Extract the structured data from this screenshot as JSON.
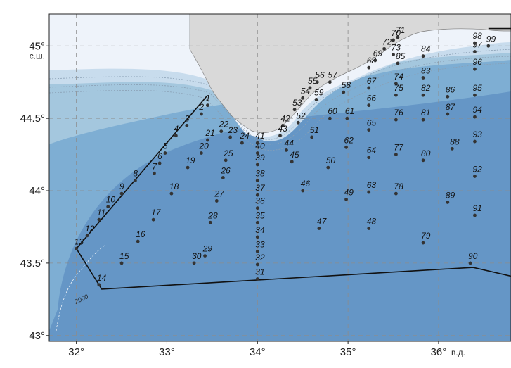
{
  "map": {
    "lon_range": [
      31.7,
      36.8
    ],
    "lat_range": [
      42.96,
      45.22
    ],
    "lat_ticks": [
      {
        "value": 45.0,
        "label": "45°",
        "unit": "с.ш."
      },
      {
        "value": 44.5,
        "label": "44.5°",
        "unit": ""
      },
      {
        "value": 44.0,
        "label": "44°",
        "unit": ""
      },
      {
        "value": 43.5,
        "label": "43.5°",
        "unit": ""
      },
      {
        "value": 43.0,
        "label": "43°",
        "unit": ""
      }
    ],
    "lon_ticks": [
      {
        "value": 32,
        "label": "32°",
        "unit": ""
      },
      {
        "value": 33,
        "label": "33°",
        "unit": ""
      },
      {
        "value": 34,
        "label": "34°",
        "unit": ""
      },
      {
        "value": 35,
        "label": "35°",
        "unit": ""
      },
      {
        "value": 36,
        "label": "36°",
        "unit": "в.д."
      }
    ],
    "isobath_label": "2000",
    "colors": {
      "land": "#d9d9d9",
      "depth_shallow": "#eef3fa",
      "depth_shelf": "#c8dced",
      "depth_slope": "#a4c7de",
      "depth_mid": "#7eaed3",
      "depth_deep": "#6596c6",
      "station_marker": "#333333",
      "track_line": "#111111"
    },
    "stations": [
      {
        "id": "1",
        "lon": 33.45,
        "lat": 44.59
      },
      {
        "id": "2",
        "lon": 33.38,
        "lat": 44.53
      },
      {
        "id": "3",
        "lon": 33.22,
        "lat": 44.45
      },
      {
        "id": "4",
        "lon": 33.1,
        "lat": 44.38
      },
      {
        "id": "5",
        "lon": 32.98,
        "lat": 44.26
      },
      {
        "id": "6",
        "lon": 32.92,
        "lat": 44.19
      },
      {
        "id": "7",
        "lon": 32.86,
        "lat": 44.12
      },
      {
        "id": "8",
        "lon": 32.65,
        "lat": 44.07
      },
      {
        "id": "9",
        "lon": 32.5,
        "lat": 43.98
      },
      {
        "id": "10",
        "lon": 32.35,
        "lat": 43.89
      },
      {
        "id": "11",
        "lon": 32.25,
        "lat": 43.8
      },
      {
        "id": "12",
        "lon": 32.12,
        "lat": 43.69
      },
      {
        "id": "13",
        "lon": 32.0,
        "lat": 43.6
      },
      {
        "id": "14",
        "lon": 32.25,
        "lat": 43.35
      },
      {
        "id": "15",
        "lon": 32.5,
        "lat": 43.5
      },
      {
        "id": "16",
        "lon": 32.68,
        "lat": 43.65
      },
      {
        "id": "17",
        "lon": 32.85,
        "lat": 43.8
      },
      {
        "id": "18",
        "lon": 33.05,
        "lat": 43.98
      },
      {
        "id": "19",
        "lon": 33.23,
        "lat": 44.16
      },
      {
        "id": "20",
        "lon": 33.38,
        "lat": 44.26
      },
      {
        "id": "21",
        "lon": 33.45,
        "lat": 44.35
      },
      {
        "id": "22",
        "lon": 33.6,
        "lat": 44.41
      },
      {
        "id": "23",
        "lon": 33.7,
        "lat": 44.37
      },
      {
        "id": "24",
        "lon": 33.83,
        "lat": 44.33
      },
      {
        "id": "25",
        "lon": 33.65,
        "lat": 44.21
      },
      {
        "id": "26",
        "lon": 33.62,
        "lat": 44.09
      },
      {
        "id": "27",
        "lon": 33.55,
        "lat": 43.93
      },
      {
        "id": "28",
        "lon": 33.48,
        "lat": 43.78
      },
      {
        "id": "29",
        "lon": 33.42,
        "lat": 43.55
      },
      {
        "id": "30",
        "lon": 33.3,
        "lat": 43.5
      },
      {
        "id": "31",
        "lon": 34.0,
        "lat": 43.39
      },
      {
        "id": "32",
        "lon": 34.0,
        "lat": 43.49
      },
      {
        "id": "33",
        "lon": 34.0,
        "lat": 43.58
      },
      {
        "id": "34",
        "lon": 34.0,
        "lat": 43.68
      },
      {
        "id": "35",
        "lon": 34.0,
        "lat": 43.78
      },
      {
        "id": "36",
        "lon": 34.0,
        "lat": 43.88
      },
      {
        "id": "37",
        "lon": 34.0,
        "lat": 43.97
      },
      {
        "id": "38",
        "lon": 34.0,
        "lat": 44.07
      },
      {
        "id": "39",
        "lon": 34.0,
        "lat": 44.18
      },
      {
        "id": "40",
        "lon": 34.0,
        "lat": 44.26
      },
      {
        "id": "41",
        "lon": 34.0,
        "lat": 44.33
      },
      {
        "id": "42",
        "lon": 34.28,
        "lat": 44.45
      },
      {
        "id": "43",
        "lon": 34.25,
        "lat": 44.38
      },
      {
        "id": "44",
        "lon": 34.32,
        "lat": 44.28
      },
      {
        "id": "45",
        "lon": 34.38,
        "lat": 44.2
      },
      {
        "id": "46",
        "lon": 34.5,
        "lat": 44.0
      },
      {
        "id": "47",
        "lon": 34.68,
        "lat": 43.74
      },
      {
        "id": "48",
        "lon": 35.23,
        "lat": 43.74
      },
      {
        "id": "49",
        "lon": 34.98,
        "lat": 43.94
      },
      {
        "id": "50",
        "lon": 34.78,
        "lat": 44.16
      },
      {
        "id": "51",
        "lon": 34.6,
        "lat": 44.37
      },
      {
        "id": "52",
        "lon": 34.45,
        "lat": 44.47
      },
      {
        "id": "53",
        "lon": 34.41,
        "lat": 44.56
      },
      {
        "id": "54",
        "lon": 34.5,
        "lat": 44.64
      },
      {
        "id": "55",
        "lon": 34.58,
        "lat": 44.71
      },
      {
        "id": "56",
        "lon": 34.66,
        "lat": 44.75
      },
      {
        "id": "57",
        "lon": 34.8,
        "lat": 44.75
      },
      {
        "id": "58",
        "lon": 34.95,
        "lat": 44.68
      },
      {
        "id": "59",
        "lon": 34.65,
        "lat": 44.63
      },
      {
        "id": "60",
        "lon": 34.8,
        "lat": 44.5
      },
      {
        "id": "61",
        "lon": 34.99,
        "lat": 44.5
      },
      {
        "id": "62",
        "lon": 34.98,
        "lat": 44.3
      },
      {
        "id": "63",
        "lon": 35.23,
        "lat": 43.99
      },
      {
        "id": "64",
        "lon": 35.23,
        "lat": 44.23
      },
      {
        "id": "65",
        "lon": 35.23,
        "lat": 44.42
      },
      {
        "id": "66",
        "lon": 35.23,
        "lat": 44.59
      },
      {
        "id": "67",
        "lon": 35.23,
        "lat": 44.71
      },
      {
        "id": "68",
        "lon": 35.23,
        "lat": 44.85
      },
      {
        "id": "69",
        "lon": 35.3,
        "lat": 44.9
      },
      {
        "id": "70",
        "lon": 35.5,
        "lat": 45.04
      },
      {
        "id": "71",
        "lon": 35.55,
        "lat": 45.06
      },
      {
        "id": "72",
        "lon": 35.4,
        "lat": 44.98
      },
      {
        "id": "73",
        "lon": 35.5,
        "lat": 44.94
      },
      {
        "id": "74",
        "lon": 35.53,
        "lat": 44.74
      },
      {
        "id": "75",
        "lon": 35.53,
        "lat": 44.66
      },
      {
        "id": "76",
        "lon": 35.53,
        "lat": 44.49
      },
      {
        "id": "77",
        "lon": 35.53,
        "lat": 44.25
      },
      {
        "id": "78",
        "lon": 35.53,
        "lat": 43.98
      },
      {
        "id": "79",
        "lon": 35.83,
        "lat": 43.64
      },
      {
        "id": "80",
        "lon": 35.83,
        "lat": 44.21
      },
      {
        "id": "81",
        "lon": 35.83,
        "lat": 44.49
      },
      {
        "id": "82",
        "lon": 35.83,
        "lat": 44.66
      },
      {
        "id": "83",
        "lon": 35.83,
        "lat": 44.78
      },
      {
        "id": "84",
        "lon": 35.83,
        "lat": 44.93
      },
      {
        "id": "85",
        "lon": 35.55,
        "lat": 44.88
      },
      {
        "id": "86",
        "lon": 36.1,
        "lat": 44.65
      },
      {
        "id": "87",
        "lon": 36.1,
        "lat": 44.53
      },
      {
        "id": "88",
        "lon": 36.15,
        "lat": 44.29
      },
      {
        "id": "89",
        "lon": 36.1,
        "lat": 43.92
      },
      {
        "id": "90",
        "lon": 36.35,
        "lat": 43.5
      },
      {
        "id": "91",
        "lon": 36.4,
        "lat": 43.83
      },
      {
        "id": "92",
        "lon": 36.4,
        "lat": 44.1
      },
      {
        "id": "93",
        "lon": 36.4,
        "lat": 44.34
      },
      {
        "id": "94",
        "lon": 36.4,
        "lat": 44.51
      },
      {
        "id": "95",
        "lon": 36.4,
        "lat": 44.66
      },
      {
        "id": "96",
        "lon": 36.4,
        "lat": 44.84
      },
      {
        "id": "97",
        "lon": 36.4,
        "lat": 44.96
      },
      {
        "id": "98",
        "lon": 36.4,
        "lat": 45.02
      },
      {
        "id": "99",
        "lon": 36.55,
        "lat": 45.0
      }
    ]
  }
}
